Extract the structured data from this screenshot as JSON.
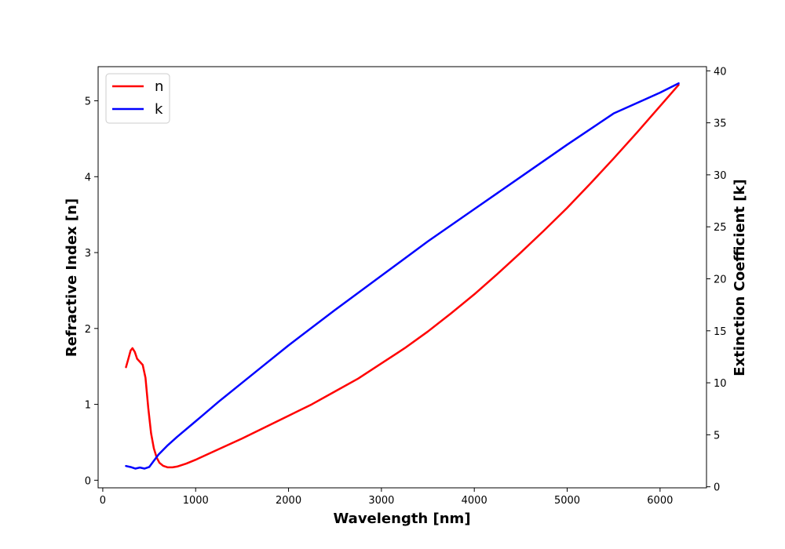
{
  "chart_data": {
    "type": "line",
    "xlabel": "Wavelength [nm]",
    "ylabel_left": "Refractive Index [n]",
    "ylabel_right": "Extinction Coefficient [k]",
    "xlim": [
      -50,
      6500
    ],
    "ylim_left": [
      -0.1,
      5.45
    ],
    "ylim_right": [
      -0.1,
      40.4
    ],
    "x_ticks": [
      0,
      1000,
      2000,
      3000,
      4000,
      5000,
      6000
    ],
    "y_ticks_left": [
      0,
      1,
      2,
      3,
      4,
      5
    ],
    "y_ticks_right": [
      0,
      5,
      10,
      15,
      20,
      25,
      30,
      35,
      40
    ],
    "grid": false,
    "legend_placement": "top-left",
    "series": [
      {
        "name": "n",
        "axis": "left",
        "color": "#ff0000",
        "points": [
          [
            250,
            1.49
          ],
          [
            280,
            1.62
          ],
          [
            300,
            1.71
          ],
          [
            320,
            1.74
          ],
          [
            345,
            1.69
          ],
          [
            370,
            1.6
          ],
          [
            400,
            1.56
          ],
          [
            430,
            1.52
          ],
          [
            460,
            1.35
          ],
          [
            490,
            0.95
          ],
          [
            520,
            0.62
          ],
          [
            550,
            0.42
          ],
          [
            580,
            0.3
          ],
          [
            610,
            0.23
          ],
          [
            650,
            0.19
          ],
          [
            700,
            0.17
          ],
          [
            750,
            0.17
          ],
          [
            800,
            0.18
          ],
          [
            900,
            0.22
          ],
          [
            1000,
            0.27
          ],
          [
            1250,
            0.41
          ],
          [
            1500,
            0.55
          ],
          [
            1750,
            0.7
          ],
          [
            2000,
            0.85
          ],
          [
            2250,
            1.0
          ],
          [
            2500,
            1.17
          ],
          [
            2750,
            1.34
          ],
          [
            3000,
            1.54
          ],
          [
            3250,
            1.74
          ],
          [
            3500,
            1.96
          ],
          [
            3750,
            2.2
          ],
          [
            4000,
            2.45
          ],
          [
            4250,
            2.72
          ],
          [
            4500,
            3.0
          ],
          [
            4750,
            3.29
          ],
          [
            5000,
            3.59
          ],
          [
            5250,
            3.91
          ],
          [
            5500,
            4.24
          ],
          [
            5750,
            4.58
          ],
          [
            6000,
            4.93
          ],
          [
            6200,
            5.21
          ]
        ]
      },
      {
        "name": "k",
        "axis": "right",
        "color": "#0000ff",
        "points": [
          [
            250,
            2.0
          ],
          [
            300,
            1.9
          ],
          [
            350,
            1.75
          ],
          [
            400,
            1.85
          ],
          [
            450,
            1.75
          ],
          [
            500,
            1.9
          ],
          [
            550,
            2.5
          ],
          [
            600,
            3.1
          ],
          [
            700,
            4.0
          ],
          [
            800,
            4.8
          ],
          [
            1000,
            6.3
          ],
          [
            1250,
            8.2
          ],
          [
            1500,
            10.0
          ],
          [
            1750,
            11.8
          ],
          [
            2000,
            13.6
          ],
          [
            2500,
            17.0
          ],
          [
            3000,
            20.3
          ],
          [
            3500,
            23.6
          ],
          [
            4000,
            26.7
          ],
          [
            4500,
            29.8
          ],
          [
            5000,
            32.9
          ],
          [
            5500,
            35.9
          ],
          [
            6000,
            37.9
          ],
          [
            6200,
            38.8
          ]
        ]
      }
    ]
  }
}
